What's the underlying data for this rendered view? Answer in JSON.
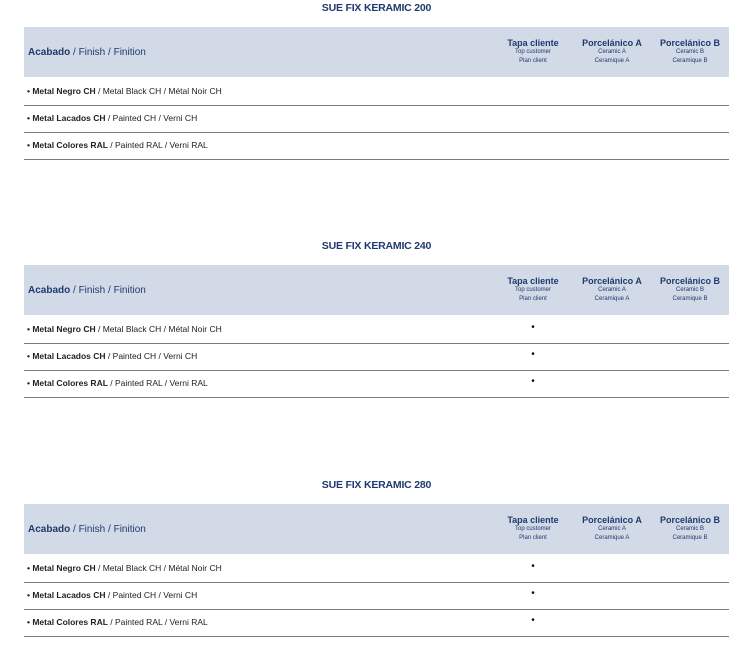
{
  "header": {
    "label_bold": "Acabado",
    "label_rest": " / Finish / Finition",
    "columns": [
      {
        "main": "Tapa cliente",
        "sub1": "Top customer",
        "sub2": "Plan client"
      },
      {
        "main": "Porcelánico A",
        "sub1": "Ceramic A",
        "sub2": "Ceramique A"
      },
      {
        "main": "Porcelánico B",
        "sub1": "Ceramic B",
        "sub2": "Ceramique B"
      }
    ]
  },
  "rows": [
    {
      "bold": "• Metal Negro CH",
      "rest": " / Metal Black CH / Métal Noir CH"
    },
    {
      "bold": "• Metal Lacados CH",
      "rest": " / Painted CH / Verni CH"
    },
    {
      "bold": "• Metal Colores RAL",
      "rest": " / Painted RAL / Verni RAL"
    }
  ],
  "tables": [
    {
      "title": "SUE FIX KERAMIC 200",
      "marks": [
        "",
        "",
        ""
      ]
    },
    {
      "title": "SUE FIX KERAMIC 240",
      "marks": [
        "•",
        "•",
        "•"
      ]
    },
    {
      "title": "SUE FIX KERAMIC 280",
      "marks": [
        "•",
        "•",
        "•"
      ]
    }
  ],
  "colors": {
    "title": "#1f3a6e",
    "header_bg": "#d2dae7"
  }
}
